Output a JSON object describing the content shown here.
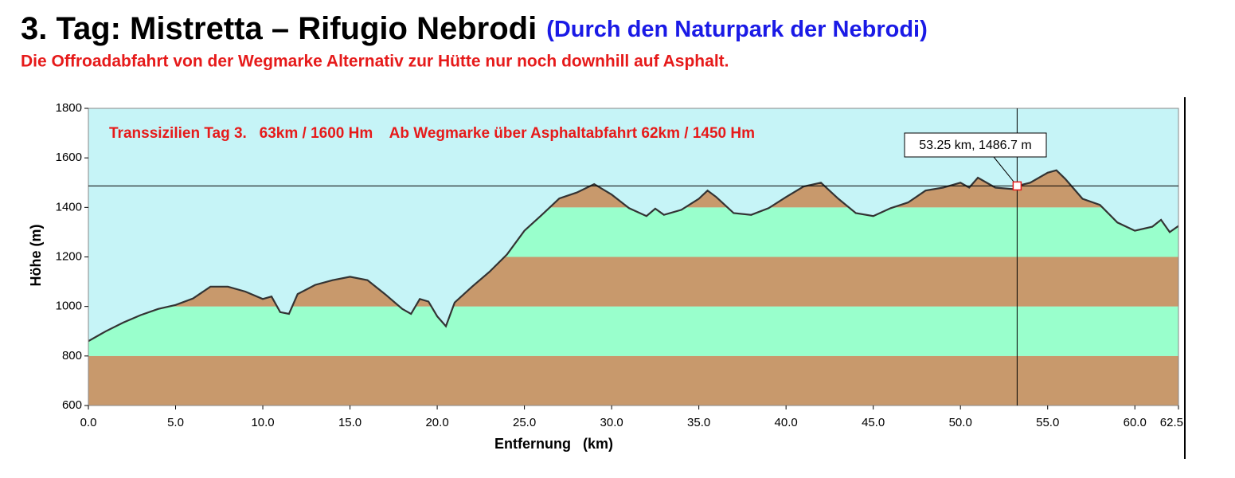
{
  "chart_data": {
    "type": "area",
    "title": "3. Tag: Mistretta – Rifugio Nebrodi",
    "title_note": "(Durch den Naturpark der Nebrodi)",
    "subtitle": "Die Offroadabfahrt von der Wegmarke Alternativ zur Hütte nur noch downhill auf Asphalt.",
    "plot_note": "Transsizilien Tag 3.   63km / 1600 Hm    Ab Wegmarke über Asphaltabfahrt 62km / 1450 Hm",
    "xlabel": "Entfernung   (km)",
    "ylabel": "Höhe (m)",
    "x": [
      0,
      1,
      2,
      3,
      4,
      5,
      6,
      7,
      8,
      9,
      10,
      10.5,
      11,
      11.5,
      12,
      13,
      14,
      15,
      16,
      17,
      18,
      18.5,
      19,
      19.5,
      20,
      20.5,
      21,
      22,
      23,
      24,
      25,
      26,
      27,
      28,
      29,
      30,
      31,
      32,
      32.5,
      33,
      34,
      35,
      35.5,
      36,
      37,
      38,
      39,
      40,
      41,
      42,
      43,
      44,
      45,
      46,
      47,
      48,
      49,
      50,
      50.5,
      51,
      52,
      53,
      53.25,
      54,
      55,
      55.5,
      56,
      57,
      58,
      59,
      60,
      61,
      61.5,
      62,
      62.5
    ],
    "values": [
      860,
      900,
      935,
      965,
      990,
      1006,
      1032,
      1080,
      1080,
      1060,
      1030,
      1040,
      977,
      970,
      1050,
      1087,
      1106,
      1120,
      1106,
      1050,
      990,
      970,
      1030,
      1020,
      960,
      920,
      1016,
      1080,
      1140,
      1210,
      1306,
      1370,
      1436,
      1460,
      1494,
      1452,
      1397,
      1365,
      1395,
      1370,
      1390,
      1435,
      1468,
      1442,
      1377,
      1370,
      1397,
      1442,
      1484,
      1500,
      1435,
      1377,
      1365,
      1397,
      1420,
      1468,
      1480,
      1500,
      1480,
      1520,
      1480,
      1474,
      1486.7,
      1500,
      1540,
      1550,
      1516,
      1435,
      1410,
      1339,
      1306,
      1322,
      1350,
      1300,
      1325
    ],
    "color": "#333333",
    "background": "#c6f4f7",
    "band_colors": [
      "#c8996c",
      "#99ffcc"
    ],
    "xlim": [
      0,
      62.5
    ],
    "ylim": [
      600,
      1800
    ],
    "yticks": [
      600,
      800,
      1000,
      1200,
      1400,
      1600,
      1800
    ],
    "xticks": [
      {
        "value": 0,
        "label": "0.0"
      },
      {
        "value": 5,
        "label": "5.0"
      },
      {
        "value": 10,
        "label": "10.0"
      },
      {
        "value": 15,
        "label": "15.0"
      },
      {
        "value": 20,
        "label": "20.0"
      },
      {
        "value": 25,
        "label": "25.0"
      },
      {
        "value": 30,
        "label": "30.0"
      },
      {
        "value": 35,
        "label": "35.0"
      },
      {
        "value": 40,
        "label": "40.0"
      },
      {
        "value": 45,
        "label": "45.0"
      },
      {
        "value": 50,
        "label": "50.0"
      },
      {
        "value": 55,
        "label": "55.0"
      },
      {
        "value": 60,
        "label": "60.0"
      },
      62.5
    ],
    "annotation": {
      "x": 53.25,
      "y": 1486.7,
      "label": "53.25 km, 1486.7 m"
    }
  }
}
